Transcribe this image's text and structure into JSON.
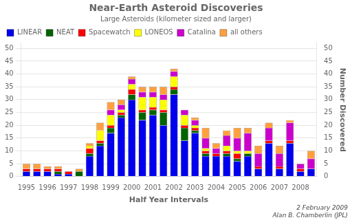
{
  "chart_data": {
    "type": "bar",
    "title": "Near-Earth Asteroid Discoveries",
    "subtitle": "Large Asteroids (kilometer sized and larger)",
    "xlabel": "Half Year Intervals",
    "y2label": "Number Discovered",
    "annotations": [
      "2 February 2009",
      "Alan B. Chamberlin (JPL)"
    ],
    "categories": [
      "1995",
      null,
      "1996",
      null,
      "1997",
      null,
      "1998",
      null,
      "1999",
      null,
      "2000",
      null,
      "2001",
      null,
      "2002",
      null,
      "2003",
      null,
      "2004",
      null,
      "2005",
      null,
      "2006",
      null,
      "2007",
      null,
      "2008",
      null
    ],
    "series": [
      {
        "name": "LINEAR",
        "color": "#0000EE",
        "values": [
          2,
          2,
          2,
          1,
          1,
          0,
          8,
          12,
          17,
          23,
          30,
          22,
          24,
          20,
          32,
          14,
          17,
          8,
          8,
          8,
          6,
          8,
          3,
          13,
          3,
          13,
          2,
          3
        ]
      },
      {
        "name": "NEAT",
        "color": "#006400",
        "values": [
          0,
          0,
          0,
          1,
          0,
          2,
          1,
          1,
          2,
          1,
          2,
          3,
          2,
          5,
          2,
          5,
          1,
          1,
          0,
          1,
          1,
          1,
          0,
          0,
          0,
          0,
          0,
          0
        ]
      },
      {
        "name": "Spacewatch",
        "color": "#FF0000",
        "values": [
          1,
          1,
          1,
          1,
          1,
          0,
          2,
          1,
          1,
          1,
          2,
          1,
          1,
          1,
          1,
          1,
          1,
          1,
          1,
          1,
          2,
          0,
          1,
          1,
          1,
          1,
          1,
          0
        ]
      },
      {
        "name": "LONEOS",
        "color": "#FFFF00",
        "values": [
          0,
          0,
          0,
          0,
          0,
          0,
          1,
          4,
          4,
          1,
          2,
          5,
          4,
          4,
          4,
          4,
          1,
          1,
          0,
          2,
          1,
          1,
          0,
          0,
          0,
          0,
          0,
          0
        ]
      },
      {
        "name": "Catalina",
        "color": "#CC00CC",
        "values": [
          0,
          0,
          0,
          0,
          0,
          0,
          0,
          0,
          2,
          2,
          2,
          2,
          2,
          2,
          2,
          2,
          2,
          4,
          2,
          4,
          5,
          7,
          5,
          5,
          5,
          7,
          2,
          4
        ]
      },
      {
        "name": "all others",
        "color": "#FFA040",
        "values": [
          2,
          2,
          1,
          1,
          0,
          1,
          1,
          3,
          3,
          2,
          1,
          2,
          2,
          3,
          1,
          0,
          1,
          4,
          2,
          2,
          4,
          2,
          3,
          2,
          3,
          1,
          0,
          3
        ]
      }
    ],
    "stacked": true,
    "ylim": [
      0,
      52
    ],
    "yticks": [
      0,
      5,
      10,
      15,
      20,
      25,
      30,
      35,
      40,
      45,
      50
    ],
    "y2lim": [
      0,
      52
    ],
    "y2ticks": [
      0,
      5,
      10,
      15,
      20,
      25,
      30,
      35,
      40,
      45,
      50
    ],
    "grid": true,
    "legend": "upper left"
  }
}
